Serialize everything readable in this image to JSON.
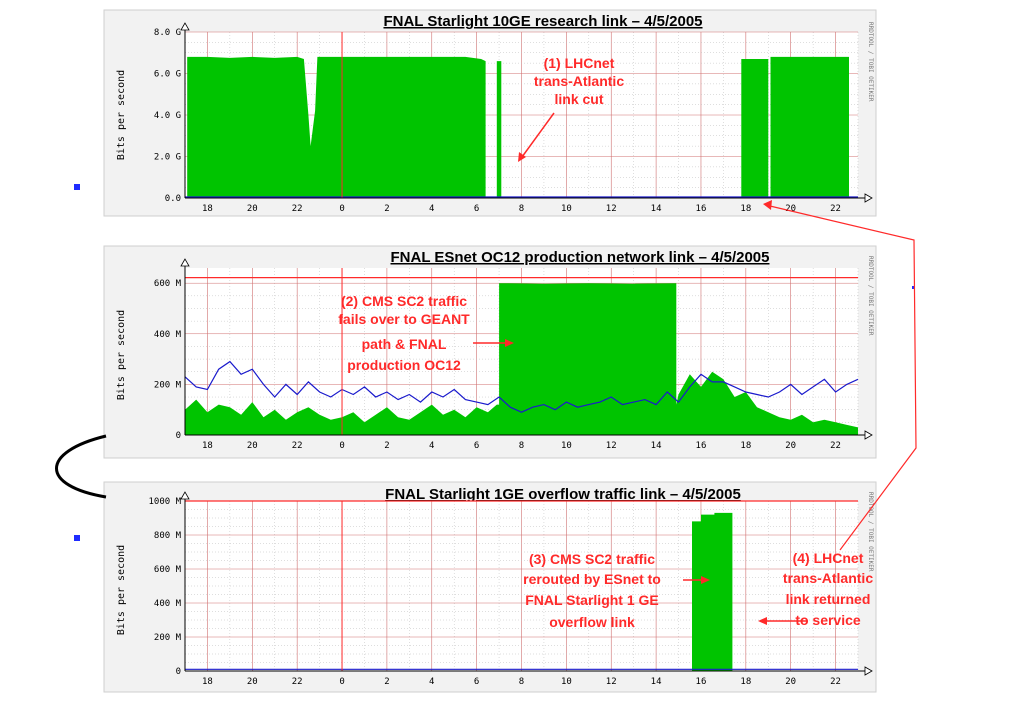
{
  "colors": {
    "fill": "#00c400",
    "line": "#1a1acc",
    "red": "#ff2a2a",
    "grid": "#bdbdbd",
    "panel": "#f2f2f2"
  },
  "rrd_tag": "RRDTOOL / TOBI OETIKER",
  "chart_data": [
    {
      "type": "area",
      "title": "FNAL Starlight 10GE research link – 4/5/2005",
      "ylabel": "Bits per second",
      "ylim": [
        0,
        8.0
      ],
      "xlim": [
        17,
        47
      ],
      "y_ticks": [
        0,
        2.0,
        4.0,
        6.0,
        8.0
      ],
      "y_tick_labels": [
        "0.0",
        "2.0 G",
        "4.0 G",
        "6.0 G",
        "8.0 G"
      ],
      "x_ticks": [
        18,
        20,
        22,
        24,
        26,
        28,
        30,
        32,
        34,
        36,
        38,
        40,
        42,
        44,
        46
      ],
      "x_tick_labels": [
        "18",
        "20",
        "22",
        "0",
        "2",
        "4",
        "6",
        "8",
        "10",
        "12",
        "14",
        "16",
        "18",
        "20",
        "22"
      ],
      "threshold": null,
      "marker_x": 24,
      "series": [
        {
          "kind": "area",
          "x": [
            17,
            17.1,
            17.1,
            18,
            19,
            20,
            21,
            22,
            22.3,
            22.5,
            22.6,
            22.8,
            22.9,
            24,
            26,
            28,
            29.5,
            30.2,
            30.4,
            30.4,
            30.9,
            30.9,
            31.1,
            31.1,
            41.8,
            41.8,
            43.0,
            43.0,
            43.1,
            43.1,
            46.6,
            46.6,
            47
          ],
          "y": [
            0,
            0,
            6.8,
            6.8,
            6.75,
            6.8,
            6.75,
            6.8,
            6.7,
            4.0,
            2.5,
            4.2,
            6.8,
            6.8,
            6.8,
            6.8,
            6.8,
            6.7,
            6.6,
            0,
            0,
            6.6,
            6.6,
            0,
            0,
            6.7,
            6.7,
            0,
            0,
            6.8,
            6.8,
            0,
            0
          ]
        },
        {
          "kind": "line",
          "x": [
            17,
            47
          ],
          "y": [
            0.05,
            0.05
          ]
        }
      ]
    },
    {
      "type": "area",
      "title": "FNAL ESnet OC12 production network link – 4/5/2005",
      "ylabel": "Bits per second",
      "ylim": [
        0,
        660
      ],
      "xlim": [
        17,
        47
      ],
      "y_ticks": [
        0,
        200,
        400,
        600
      ],
      "y_tick_labels": [
        "0",
        "200 M",
        "400 M",
        "600 M"
      ],
      "x_ticks": [
        18,
        20,
        22,
        24,
        26,
        28,
        30,
        32,
        34,
        36,
        38,
        40,
        42,
        44,
        46
      ],
      "x_tick_labels": [
        "18",
        "20",
        "22",
        "0",
        "2",
        "4",
        "6",
        "8",
        "10",
        "12",
        "14",
        "16",
        "18",
        "20",
        "22"
      ],
      "threshold": 622,
      "marker_x": 24,
      "series": [
        {
          "kind": "area",
          "x": [
            17,
            17.5,
            18,
            18.5,
            19,
            19.5,
            20,
            20.5,
            21,
            21.5,
            22,
            22.5,
            23,
            23.5,
            24,
            24.5,
            25,
            25.5,
            26,
            26.5,
            27,
            27.5,
            28,
            28.5,
            29,
            29.5,
            30,
            30.5,
            30.9,
            31.0,
            31.0,
            33,
            35,
            37,
            38.9,
            38.9,
            39.0,
            39.5,
            40,
            40.5,
            41,
            41.5,
            42,
            42.5,
            43,
            43.5,
            44,
            44.5,
            45,
            45.5,
            46,
            46.5,
            47,
            47
          ],
          "y": [
            100,
            140,
            90,
            120,
            110,
            80,
            130,
            70,
            100,
            60,
            90,
            110,
            80,
            60,
            70,
            90,
            50,
            80,
            110,
            70,
            60,
            90,
            120,
            80,
            100,
            70,
            110,
            90,
            120,
            120,
            600,
            598,
            600,
            598,
            600,
            120,
            160,
            240,
            190,
            250,
            220,
            150,
            170,
            110,
            90,
            70,
            60,
            80,
            50,
            60,
            50,
            40,
            30,
            0
          ]
        },
        {
          "kind": "line",
          "x": [
            17,
            17.5,
            18,
            18.5,
            19,
            19.5,
            20,
            20.5,
            21,
            21.5,
            22,
            22.5,
            23,
            23.5,
            24,
            24.5,
            25,
            25.5,
            26,
            26.5,
            27,
            27.5,
            28,
            28.5,
            29,
            29.5,
            30,
            30.5,
            31,
            31.5,
            32,
            32.5,
            33,
            33.5,
            34,
            34.5,
            35,
            35.5,
            36,
            36.5,
            37,
            37.5,
            38,
            38.5,
            39,
            39.5,
            40,
            40.5,
            41,
            41.5,
            42,
            42.5,
            43,
            43.5,
            44,
            44.5,
            45,
            45.5,
            46,
            46.5,
            47
          ],
          "y": [
            230,
            190,
            180,
            260,
            290,
            240,
            260,
            200,
            150,
            200,
            160,
            210,
            170,
            150,
            180,
            160,
            190,
            150,
            170,
            140,
            160,
            130,
            170,
            150,
            180,
            140,
            130,
            120,
            150,
            110,
            90,
            110,
            120,
            100,
            130,
            110,
            120,
            130,
            150,
            120,
            130,
            140,
            120,
            170,
            130,
            190,
            240,
            210,
            210,
            190,
            170,
            160,
            150,
            170,
            200,
            160,
            190,
            220,
            170,
            200,
            220
          ]
        }
      ]
    },
    {
      "type": "area",
      "title": "FNAL Starlight 1GE overflow traffic link – 4/5/2005",
      "ylabel": "Bits per second",
      "ylim": [
        0,
        1000
      ],
      "xlim": [
        17,
        47
      ],
      "y_ticks": [
        0,
        200,
        400,
        600,
        800,
        1000
      ],
      "y_tick_labels": [
        "0",
        "200 M",
        "400 M",
        "600 M",
        "800 M",
        "1000 M"
      ],
      "x_ticks": [
        18,
        20,
        22,
        24,
        26,
        28,
        30,
        32,
        34,
        36,
        38,
        40,
        42,
        44,
        46
      ],
      "x_tick_labels": [
        "18",
        "20",
        "22",
        "0",
        "2",
        "4",
        "6",
        "8",
        "10",
        "12",
        "14",
        "16",
        "18",
        "20",
        "22"
      ],
      "threshold": 1000,
      "marker_x": 24,
      "series": [
        {
          "kind": "area",
          "x": [
            17,
            39.6,
            39.6,
            40.0,
            40.0,
            40.6,
            40.6,
            41.3,
            41.3,
            41.4,
            41.4,
            47
          ],
          "y": [
            0,
            0,
            880,
            880,
            920,
            920,
            930,
            930,
            930,
            930,
            0,
            0
          ]
        },
        {
          "kind": "line",
          "x": [
            17,
            47
          ],
          "y": [
            10,
            10
          ]
        }
      ]
    }
  ],
  "annotations": [
    {
      "id": "ann1",
      "lines": [
        "(1) LHCnet",
        "trans-Atlantic",
        "link cut"
      ]
    },
    {
      "id": "ann2",
      "lines": [
        "(2) CMS SC2 traffic",
        "fails over to GEANT",
        "path & FNAL",
        "production OC12"
      ]
    },
    {
      "id": "ann3",
      "lines": [
        "(3) CMS SC2 traffic",
        "rerouted by ESnet to",
        "FNAL Starlight 1 GE",
        "overflow link"
      ]
    },
    {
      "id": "ann4",
      "lines": [
        "(4) LHCnet",
        "trans-Atlantic",
        "link returned",
        "to service"
      ]
    }
  ]
}
